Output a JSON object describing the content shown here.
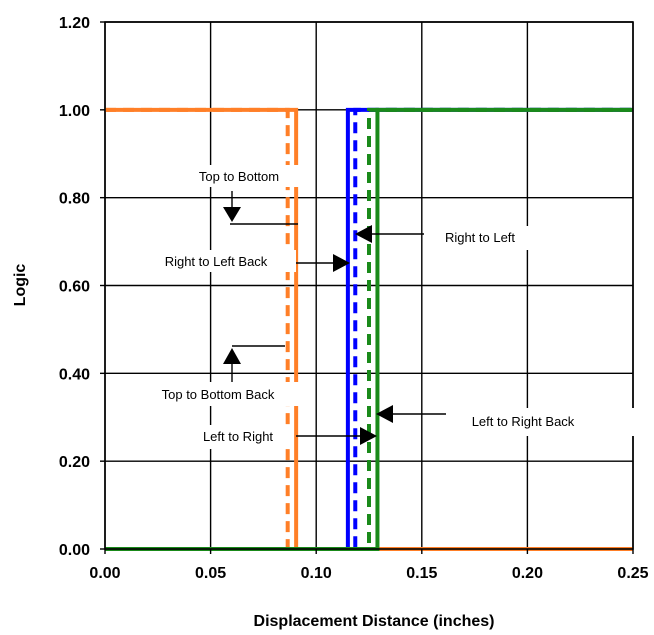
{
  "chart_data": {
    "type": "line",
    "xlabel": "Displacement Distance (inches)",
    "ylabel": "Logic",
    "xlim": [
      0,
      0.25
    ],
    "ylim": [
      0,
      1.2
    ],
    "x_ticks": [
      "0.00",
      "0.05",
      "0.10",
      "0.15",
      "0.20",
      "0.25"
    ],
    "y_ticks": [
      "0.00",
      "0.20",
      "0.40",
      "0.60",
      "0.80",
      "1.00",
      "1.20"
    ],
    "grid": true,
    "legend": "none",
    "series": [
      {
        "color": "#ff7f27",
        "dash": "solid",
        "x": [
          0,
          0.0905,
          0.0905,
          0.25
        ],
        "y": [
          1,
          1,
          0,
          0
        ]
      },
      {
        "color": "#ff7f27",
        "dash": "dashed",
        "x": [
          0,
          0.0865,
          0.0865,
          0.25
        ],
        "y": [
          1,
          1,
          0,
          0
        ]
      },
      {
        "color": "#0000ff",
        "dash": "solid",
        "x": [
          0,
          0.115,
          0.115,
          0.25
        ],
        "y": [
          0,
          0,
          1,
          1
        ]
      },
      {
        "color": "#0000ff",
        "dash": "dashed",
        "x": [
          0,
          0.1185,
          0.1185,
          0.25
        ],
        "y": [
          0,
          0,
          1,
          1
        ]
      },
      {
        "color": "#1a8a1a",
        "dash": "dashed",
        "x": [
          0,
          0.125,
          0.125,
          0.25
        ],
        "y": [
          0,
          0,
          1,
          1
        ]
      },
      {
        "color": "#1a8a1a",
        "dash": "solid",
        "x": [
          0,
          0.129,
          0.129,
          0.25
        ],
        "y": [
          0,
          0,
          1,
          1
        ]
      }
    ],
    "annotations": [
      {
        "text": "Top to Bottom"
      },
      {
        "text": "Right to Left Back"
      },
      {
        "text": "Right to Left"
      },
      {
        "text": "Top to Bottom Back"
      },
      {
        "text": "Left to Right"
      },
      {
        "text": "Left to Right Back"
      }
    ]
  }
}
